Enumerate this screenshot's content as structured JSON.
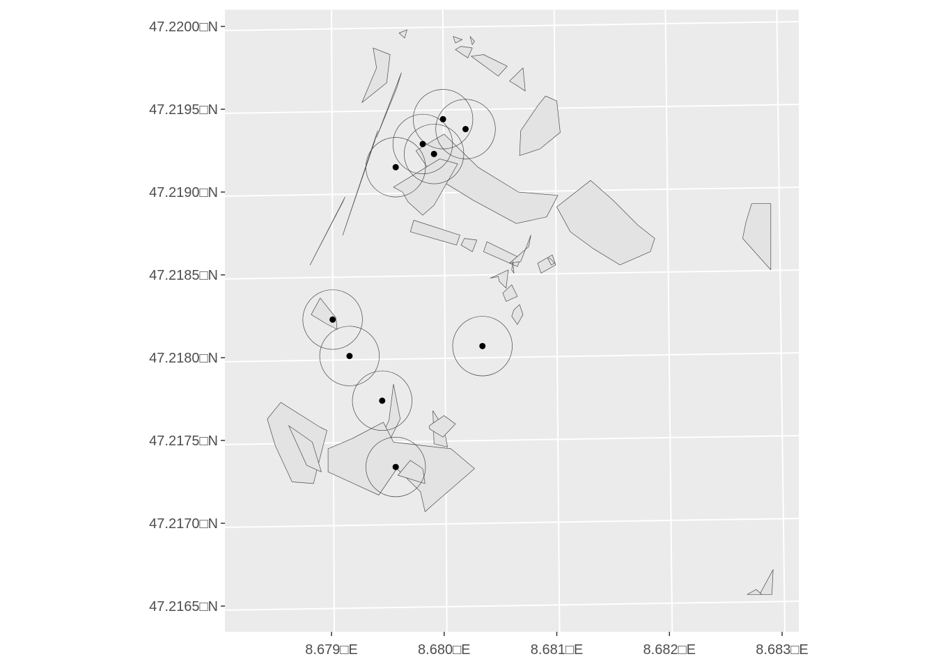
{
  "chart_data": {
    "type": "map",
    "title": "",
    "xlabel": "",
    "ylabel": "",
    "x_axis": {
      "range_deg": [
        8.6782,
        8.6832
      ],
      "ticks": [
        {
          "value": 8.679,
          "label": "8.679□E"
        },
        {
          "value": 8.68,
          "label": "8.680□E"
        },
        {
          "value": 8.681,
          "label": "8.681□E"
        },
        {
          "value": 8.682,
          "label": "8.682□E"
        },
        {
          "value": 8.683,
          "label": "8.683□E"
        }
      ]
    },
    "y_axis": {
      "range_deg": [
        47.2163,
        47.2201
      ],
      "ticks": [
        {
          "value": 47.22,
          "label": "47.2200□N"
        },
        {
          "value": 47.2195,
          "label": "47.2195□N"
        },
        {
          "value": 47.219,
          "label": "47.2190□N"
        },
        {
          "value": 47.2185,
          "label": "47.2185□N"
        },
        {
          "value": 47.218,
          "label": "47.2180□N"
        },
        {
          "value": 47.2175,
          "label": "47.2175□N"
        },
        {
          "value": 47.217,
          "label": "47.2170□N"
        },
        {
          "value": 47.2165,
          "label": "47.2165□N"
        }
      ]
    },
    "grid": true,
    "buffer_radius_deg_lat": 0.00018,
    "points": [
      {
        "lon": 8.67999,
        "lat": 47.21944
      },
      {
        "lon": 8.68019,
        "lat": 47.21938
      },
      {
        "lon": 8.67981,
        "lat": 47.21929
      },
      {
        "lon": 8.67991,
        "lat": 47.21923
      },
      {
        "lon": 8.67957,
        "lat": 47.21915
      },
      {
        "lon": 8.67901,
        "lat": 47.21823
      },
      {
        "lon": 8.67916,
        "lat": 47.21801
      },
      {
        "lon": 8.68034,
        "lat": 47.21807
      },
      {
        "lon": 8.67945,
        "lat": 47.21774
      },
      {
        "lon": 8.67957,
        "lat": 47.21734
      }
    ],
    "polygons": [
      [
        [
          8.67881,
          47.21856
        ],
        [
          8.67912,
          47.21897
        ],
        [
          8.6791,
          47.21894
        ]
      ],
      [
        [
          8.6791,
          47.21874
        ],
        [
          8.67941,
          47.21937
        ],
        [
          8.67938,
          47.2193
        ]
      ],
      [
        [
          8.6794,
          47.21933
        ],
        [
          8.67962,
          47.21972
        ],
        [
          8.67958,
          47.21963
        ]
      ],
      [
        [
          8.6794,
          47.21975
        ],
        [
          8.67927,
          47.21954
        ],
        [
          8.67949,
          47.21966
        ],
        [
          8.67952,
          47.21983
        ],
        [
          8.67937,
          47.21987
        ]
      ],
      [
        [
          8.6796,
          47.21996
        ],
        [
          8.67967,
          47.21998
        ],
        [
          8.67965,
          47.21993
        ]
      ],
      [
        [
          8.68008,
          47.21994
        ],
        [
          8.68016,
          47.21992
        ],
        [
          8.6801,
          47.2199
        ]
      ],
      [
        [
          8.68023,
          47.21994
        ],
        [
          8.68027,
          47.21991
        ],
        [
          8.68025,
          47.21989
        ]
      ],
      [
        [
          8.6801,
          47.21986
        ],
        [
          8.68021,
          47.21981
        ],
        [
          8.68025,
          47.21987
        ],
        [
          8.68015,
          47.21988
        ]
      ],
      [
        [
          8.68024,
          47.21982
        ],
        [
          8.68048,
          47.2197
        ],
        [
          8.68056,
          47.21976
        ],
        [
          8.68035,
          47.21983
        ]
      ],
      [
        [
          8.68058,
          47.21967
        ],
        [
          8.6807,
          47.21975
        ],
        [
          8.68072,
          47.21961
        ],
        [
          8.68063,
          47.21965
        ]
      ],
      [
        [
          8.68068,
          47.21937
        ],
        [
          8.68083,
          47.21952
        ],
        [
          8.6809,
          47.21958
        ],
        [
          8.681,
          47.21955
        ],
        [
          8.68103,
          47.21936
        ],
        [
          8.68085,
          47.21926
        ],
        [
          8.68067,
          47.21922
        ]
      ],
      [
        [
          8.68,
          47.21935
        ],
        [
          8.6803,
          47.21915
        ],
        [
          8.68066,
          47.219
        ],
        [
          8.68101,
          47.21898
        ],
        [
          8.68091,
          47.21885
        ],
        [
          8.68064,
          47.21881
        ],
        [
          8.68026,
          47.21895
        ],
        [
          8.6799,
          47.2191
        ],
        [
          8.67975,
          47.21925
        ]
      ],
      [
        [
          8.67963,
          47.219
        ],
        [
          8.67955,
          47.21903
        ],
        [
          8.67972,
          47.2191
        ],
        [
          8.67996,
          47.2192
        ],
        [
          8.68012,
          47.21917
        ],
        [
          8.67991,
          47.21892
        ],
        [
          8.67981,
          47.21886
        ],
        [
          8.67968,
          47.21894
        ]
      ],
      [
        [
          8.681,
          47.21891
        ],
        [
          8.6813,
          47.21907
        ],
        [
          8.6815,
          47.21895
        ],
        [
          8.68172,
          47.2188
        ],
        [
          8.68187,
          47.21872
        ],
        [
          8.68183,
          47.21864
        ],
        [
          8.68156,
          47.21856
        ],
        [
          8.68132,
          47.21866
        ],
        [
          8.68112,
          47.21876
        ]
      ],
      [
        [
          8.6797,
          47.21876
        ],
        [
          8.68011,
          47.21868
        ],
        [
          8.68014,
          47.21874
        ],
        [
          8.67973,
          47.21883
        ]
      ],
      [
        [
          8.68015,
          47.21868
        ],
        [
          8.68025,
          47.21864
        ],
        [
          8.68029,
          47.21871
        ],
        [
          8.68018,
          47.21872
        ]
      ],
      [
        [
          8.68035,
          47.21864
        ],
        [
          8.68065,
          47.21855
        ],
        [
          8.68068,
          47.2186
        ],
        [
          8.68038,
          47.2187
        ]
      ],
      [
        [
          8.68058,
          47.21857
        ],
        [
          8.68075,
          47.21867
        ],
        [
          8.68077,
          47.21874
        ],
        [
          8.68068,
          47.21858
        ]
      ],
      [
        [
          8.68086,
          47.21851
        ],
        [
          8.68099,
          47.21856
        ],
        [
          8.68096,
          47.21862
        ],
        [
          8.68083,
          47.21857
        ]
      ],
      [
        [
          8.68061,
          47.21858
        ],
        [
          8.68062,
          47.21851
        ],
        [
          8.6806,
          47.21853
        ]
      ],
      [
        [
          8.68092,
          47.2186
        ],
        [
          8.68095,
          47.21856
        ],
        [
          8.68098,
          47.21857
        ],
        [
          8.68094,
          47.2186
        ]
      ],
      [
        [
          8.68052,
          47.21839
        ],
        [
          8.6806,
          47.21844
        ],
        [
          8.68065,
          47.21837
        ],
        [
          8.68055,
          47.21834
        ]
      ],
      [
        [
          8.68041,
          47.21848
        ],
        [
          8.68057,
          47.21853
        ],
        [
          8.68055,
          47.21842
        ],
        [
          8.68049,
          47.21846
        ],
        [
          8.68048,
          47.21849
        ]
      ],
      [
        [
          8.6806,
          47.21825
        ],
        [
          8.68062,
          47.21829
        ],
        [
          8.68067,
          47.21832
        ],
        [
          8.6807,
          47.21826
        ],
        [
          8.68065,
          47.2182
        ]
      ],
      [
        [
          8.68273,
          47.21893
        ],
        [
          8.6829,
          47.21893
        ],
        [
          8.6829,
          47.21853
        ],
        [
          8.68265,
          47.21872
        ],
        [
          8.68268,
          47.21882
        ]
      ],
      [
        [
          8.68292,
          47.21672
        ],
        [
          8.6828,
          47.21657
        ],
        [
          8.68291,
          47.21657
        ]
      ],
      [
        [
          8.68269,
          47.21657
        ],
        [
          8.68282,
          47.21657
        ],
        [
          8.68277,
          47.2166
        ]
      ],
      [
        [
          8.67894,
          47.21821
        ],
        [
          8.67905,
          47.21817
        ],
        [
          8.67904,
          47.21824
        ],
        [
          8.6789,
          47.21836
        ],
        [
          8.67882,
          47.21826
        ]
      ],
      [
        [
          8.67855,
          47.21773
        ],
        [
          8.6789,
          47.21758
        ],
        [
          8.67896,
          47.21756
        ],
        [
          8.67884,
          47.21724
        ],
        [
          8.67865,
          47.21725
        ],
        [
          8.6785,
          47.21747
        ],
        [
          8.67843,
          47.21763
        ]
      ],
      [
        [
          8.67862,
          47.21759
        ],
        [
          8.67883,
          47.21749
        ],
        [
          8.67891,
          47.21731
        ],
        [
          8.67878,
          47.21735
        ]
      ],
      [
        [
          8.67955,
          47.21784
        ],
        [
          8.67961,
          47.21763
        ],
        [
          8.67945,
          47.21741
        ],
        [
          8.67943,
          47.21751
        ],
        [
          8.67951,
          47.21762
        ]
      ],
      [
        [
          8.6799,
          47.21768
        ],
        [
          8.68,
          47.21757
        ],
        [
          8.68003,
          47.21746
        ],
        [
          8.67991,
          47.21748
        ]
      ],
      [
        [
          8.67897,
          47.21731
        ],
        [
          8.67942,
          47.21717
        ],
        [
          8.67958,
          47.21733
        ],
        [
          8.67979,
          47.21719
        ],
        [
          8.67983,
          47.21707
        ],
        [
          8.67993,
          47.21713
        ],
        [
          8.68027,
          47.21733
        ],
        [
          8.68006,
          47.21745
        ],
        [
          8.6798,
          47.21747
        ],
        [
          8.67955,
          47.21749
        ],
        [
          8.67946,
          47.21761
        ],
        [
          8.67918,
          47.21751
        ],
        [
          8.67897,
          47.21745
        ]
      ],
      [
        [
          8.67987,
          47.21757
        ],
        [
          8.67999,
          47.21752
        ],
        [
          8.6801,
          47.2176
        ],
        [
          8.68,
          47.21765
        ],
        [
          8.67987,
          47.21759
        ]
      ],
      [
        [
          8.67959,
          47.21729
        ],
        [
          8.6797,
          47.21738
        ],
        [
          8.67981,
          47.21733
        ],
        [
          8.67983,
          47.21724
        ]
      ]
    ]
  }
}
